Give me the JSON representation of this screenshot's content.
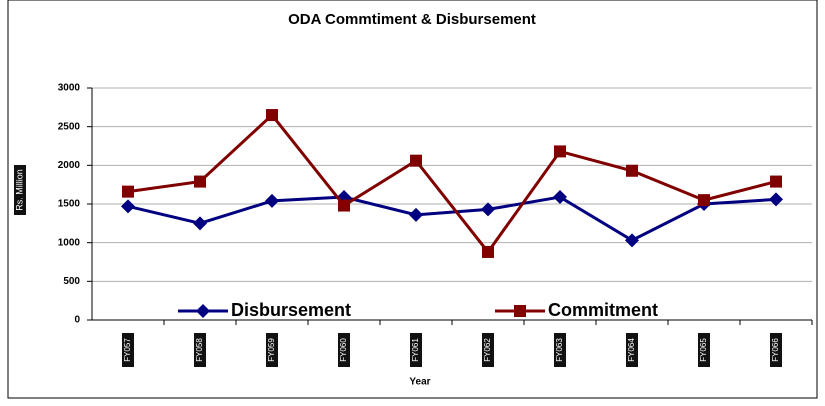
{
  "chart_data": {
    "type": "line",
    "title": "ODA Commtiment & Disbursement",
    "x_label": "Year",
    "y_label": "Rs. Million",
    "categories": [
      "FY057",
      "FY058",
      "FY059",
      "FY060",
      "FY061",
      "FY062",
      "FY063",
      "FY064",
      "FY065",
      "FY066"
    ],
    "series": [
      {
        "name": "Disbursement",
        "color": "#000080",
        "marker": "diamond",
        "values": [
          1470,
          1250,
          1540,
          1590,
          1360,
          1430,
          1590,
          1030,
          1500,
          1560
        ]
      },
      {
        "name": "Commitment",
        "color": "#800000",
        "marker": "square",
        "values": [
          1660,
          1790,
          2650,
          1480,
          2060,
          880,
          2180,
          1930,
          1550,
          1790
        ]
      }
    ],
    "ylim": [
      0,
      3000
    ],
    "yticks": [
      0,
      500,
      1000,
      1500,
      2000,
      2500,
      3000
    ],
    "grid": true
  }
}
